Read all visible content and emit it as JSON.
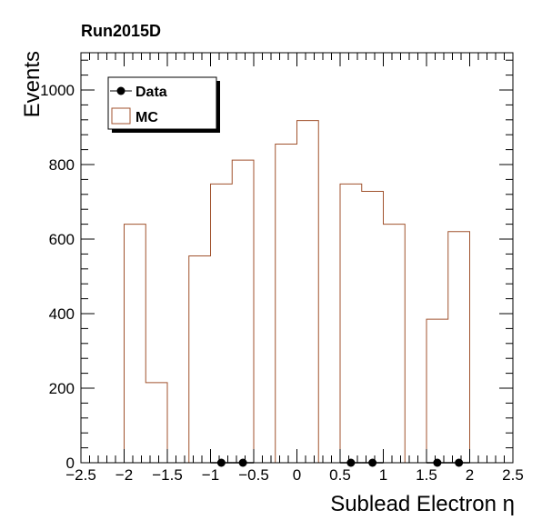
{
  "chart_data": {
    "type": "histogram",
    "title": "Run2015D",
    "xlabel": "Sublead Electron η",
    "ylabel": "Events",
    "xlim": [
      -2.5,
      2.5
    ],
    "ylim": [
      0,
      1100
    ],
    "bin_edges": [
      -2.5,
      -2.25,
      -2.0,
      -1.75,
      -1.5,
      -1.25,
      -1.0,
      -0.75,
      -0.5,
      -0.25,
      0.0,
      0.25,
      0.5,
      0.75,
      1.0,
      1.25,
      1.5,
      1.75,
      2.0,
      2.25,
      2.5
    ],
    "x_ticks": [
      -2.5,
      -2,
      -1.5,
      -1,
      -0.5,
      0,
      0.5,
      1,
      1.5,
      2,
      2.5
    ],
    "x_tick_labels": [
      "−2.5",
      "−2",
      "−1.5",
      "−1",
      "−0.5",
      "0",
      "0.5",
      "1",
      "1.5",
      "2",
      "2.5"
    ],
    "y_ticks": [
      0,
      200,
      400,
      600,
      800,
      1000
    ],
    "y_tick_labels": [
      "0",
      "200",
      "400",
      "600",
      "800",
      "1000"
    ],
    "series": [
      {
        "name": "MC",
        "kind": "histogram",
        "color": "#a0522d",
        "values": [
          0,
          0,
          640,
          215,
          0,
          555,
          748,
          812,
          0,
          855,
          918,
          0,
          748,
          728,
          640,
          0,
          385,
          620,
          0,
          0
        ]
      },
      {
        "name": "Data",
        "kind": "points",
        "color": "#000000",
        "x": [
          -0.875,
          -0.625,
          0.625,
          0.875,
          1.625,
          1.875
        ],
        "y": [
          0,
          0,
          0,
          0,
          0,
          0
        ]
      }
    ],
    "legend": {
      "position": "top-left",
      "entries": [
        "Data",
        "MC"
      ]
    },
    "grid": false
  }
}
